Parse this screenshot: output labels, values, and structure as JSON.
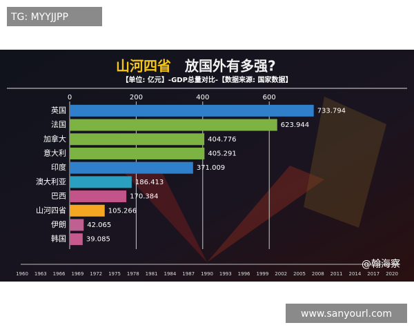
{
  "chart_data": {
    "type": "bar",
    "orientation": "horizontal",
    "title_highlight": "山河四省",
    "title": "放国外有多强?",
    "subtitle": "【单位: 亿元】-GDP总量对比-【数据来源: 国家数据】",
    "categories": [
      "英国",
      "法国",
      "加拿大",
      "意大利",
      "印度",
      "澳大利亚",
      "巴西",
      "山河四省",
      "伊朗",
      "韩国"
    ],
    "values": [
      733.794,
      623.944,
      404.776,
      405.291,
      371.009,
      186.413,
      170.384,
      105.266,
      42.065,
      39.085
    ],
    "colors": [
      "#2f7fcb",
      "#7cb342",
      "#7cb342",
      "#7cb342",
      "#2f7fcb",
      "#2a9fc0",
      "#c2548a",
      "#f5a623",
      "#c06090",
      "#c45a8e"
    ],
    "xlim": [
      0,
      1000
    ],
    "xticks": [
      0,
      200,
      400,
      600
    ],
    "grid": true
  },
  "overlay": {
    "tag": "TG: MYYJJPP",
    "site": "www.sanyourl.com",
    "credit": "@翰海察",
    "timeline": [
      "1960",
      "1963",
      "1966",
      "1969",
      "1972",
      "1975",
      "1978",
      "1981",
      "1984",
      "1987",
      "1990",
      "1993",
      "1996",
      "1999",
      "2002",
      "2005",
      "2008",
      "2011",
      "2014",
      "2017",
      "2020"
    ]
  }
}
